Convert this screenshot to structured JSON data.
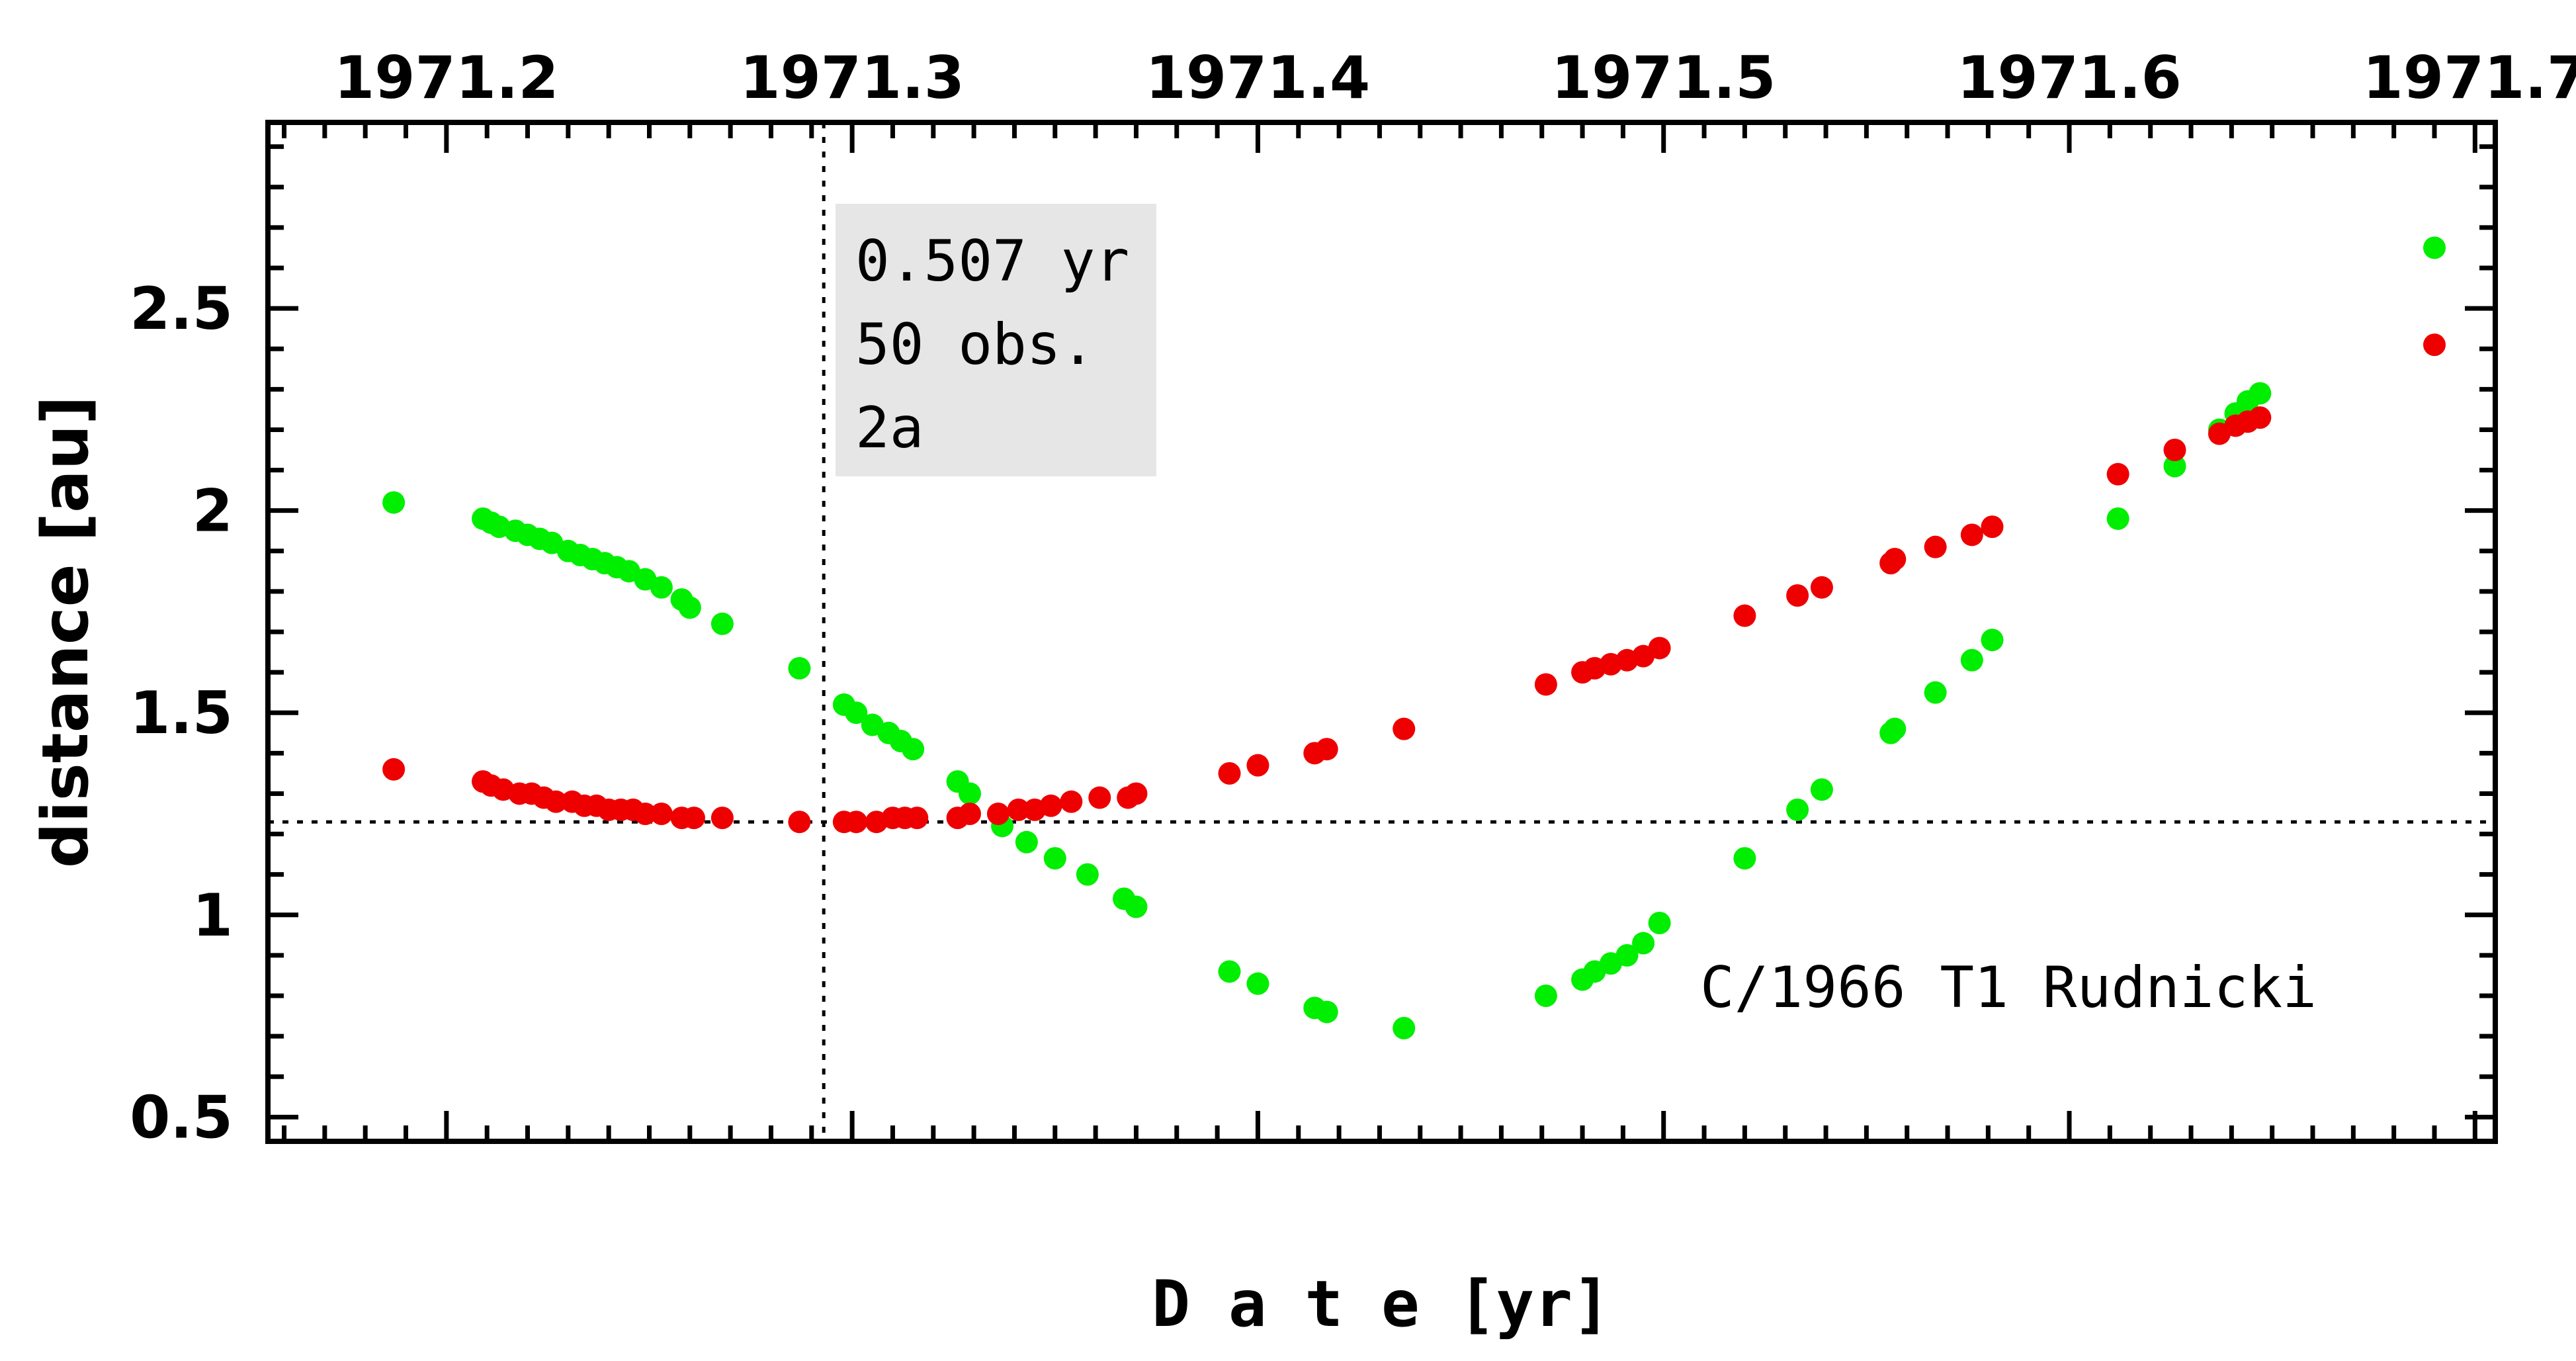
{
  "chart_data": {
    "type": "scatter",
    "title": "",
    "xlabel": "D a t e [yr]",
    "ylabel": "distance [au]",
    "xlim": [
      1971.156,
      1971.705
    ],
    "ylim": [
      0.44,
      2.96
    ],
    "x_ticks": [
      1971.2,
      1971.3,
      1971.4,
      1971.5,
      1971.6,
      1971.7
    ],
    "x_tick_labels": [
      "1971.2",
      "1971.3",
      "1971.4",
      "1971.5",
      "1971.6",
      "1971.7"
    ],
    "y_ticks": [
      0.5,
      1,
      1.5,
      2,
      2.5
    ],
    "y_tick_labels": [
      "0.5",
      "1",
      "1.5",
      "2",
      "2.5"
    ],
    "x_axis_position": "top",
    "info_box": [
      "0.507 yr",
      "50 obs.",
      "2a"
    ],
    "annotation": "C/1966 T1 Rudnicki",
    "reference_lines": {
      "vertical_x": 1971.293,
      "horizontal_y": 1.23
    },
    "colors": {
      "green": "#00ee00",
      "red": "#ee0000",
      "info_box_bg": "#e6e6e6"
    },
    "series": [
      {
        "color": "green",
        "x": [
          1971.187,
          1971.209,
          1971.211,
          1971.213,
          1971.217,
          1971.22,
          1971.223,
          1971.226,
          1971.23,
          1971.233,
          1971.236,
          1971.239,
          1971.242,
          1971.245,
          1971.249,
          1971.253,
          1971.258,
          1971.26,
          1971.268,
          1971.287,
          1971.298,
          1971.301,
          1971.305,
          1971.309,
          1971.312,
          1971.315,
          1971.326,
          1971.329,
          1971.337,
          1971.343,
          1971.35,
          1971.358,
          1971.367,
          1971.37,
          1971.393,
          1971.4,
          1971.414,
          1971.417,
          1971.436,
          1971.471,
          1971.48,
          1971.483,
          1971.487,
          1971.491,
          1971.495,
          1971.499,
          1971.52,
          1971.533,
          1971.539,
          1971.556,
          1971.557,
          1971.567,
          1971.576,
          1971.581,
          1971.612,
          1971.626,
          1971.637,
          1971.641,
          1971.644,
          1971.647,
          1971.69
        ],
        "y": [
          2.02,
          1.98,
          1.97,
          1.96,
          1.95,
          1.94,
          1.93,
          1.92,
          1.9,
          1.89,
          1.88,
          1.87,
          1.86,
          1.85,
          1.83,
          1.81,
          1.78,
          1.76,
          1.72,
          1.61,
          1.52,
          1.5,
          1.47,
          1.45,
          1.43,
          1.41,
          1.33,
          1.3,
          1.22,
          1.18,
          1.14,
          1.1,
          1.04,
          1.02,
          0.86,
          0.83,
          0.77,
          0.76,
          0.72,
          0.8,
          0.84,
          0.86,
          0.88,
          0.9,
          0.93,
          0.98,
          1.14,
          1.26,
          1.31,
          1.45,
          1.46,
          1.55,
          1.63,
          1.68,
          1.98,
          2.11,
          2.2,
          2.24,
          2.27,
          2.29,
          2.65
        ]
      },
      {
        "color": "red",
        "x": [
          1971.187,
          1971.209,
          1971.211,
          1971.214,
          1971.218,
          1971.221,
          1971.224,
          1971.227,
          1971.231,
          1971.234,
          1971.237,
          1971.24,
          1971.243,
          1971.246,
          1971.249,
          1971.253,
          1971.258,
          1971.261,
          1971.268,
          1971.287,
          1971.298,
          1971.301,
          1971.306,
          1971.31,
          1971.313,
          1971.316,
          1971.326,
          1971.329,
          1971.336,
          1971.341,
          1971.345,
          1971.349,
          1971.354,
          1971.361,
          1971.368,
          1971.37,
          1971.393,
          1971.4,
          1971.414,
          1971.417,
          1971.436,
          1971.471,
          1971.48,
          1971.483,
          1971.487,
          1971.491,
          1971.495,
          1971.499,
          1971.52,
          1971.533,
          1971.539,
          1971.556,
          1971.557,
          1971.567,
          1971.576,
          1971.581,
          1971.612,
          1971.626,
          1971.637,
          1971.641,
          1971.644,
          1971.647,
          1971.69
        ],
        "y": [
          1.36,
          1.33,
          1.32,
          1.31,
          1.3,
          1.3,
          1.29,
          1.28,
          1.28,
          1.27,
          1.27,
          1.26,
          1.26,
          1.26,
          1.25,
          1.25,
          1.24,
          1.24,
          1.24,
          1.23,
          1.23,
          1.23,
          1.23,
          1.24,
          1.24,
          1.24,
          1.24,
          1.25,
          1.25,
          1.26,
          1.26,
          1.27,
          1.28,
          1.29,
          1.29,
          1.3,
          1.35,
          1.37,
          1.4,
          1.41,
          1.46,
          1.57,
          1.6,
          1.61,
          1.62,
          1.63,
          1.64,
          1.66,
          1.74,
          1.79,
          1.81,
          1.87,
          1.88,
          1.91,
          1.94,
          1.96,
          2.09,
          2.15,
          2.19,
          2.21,
          2.22,
          2.23,
          2.41
        ]
      }
    ]
  }
}
